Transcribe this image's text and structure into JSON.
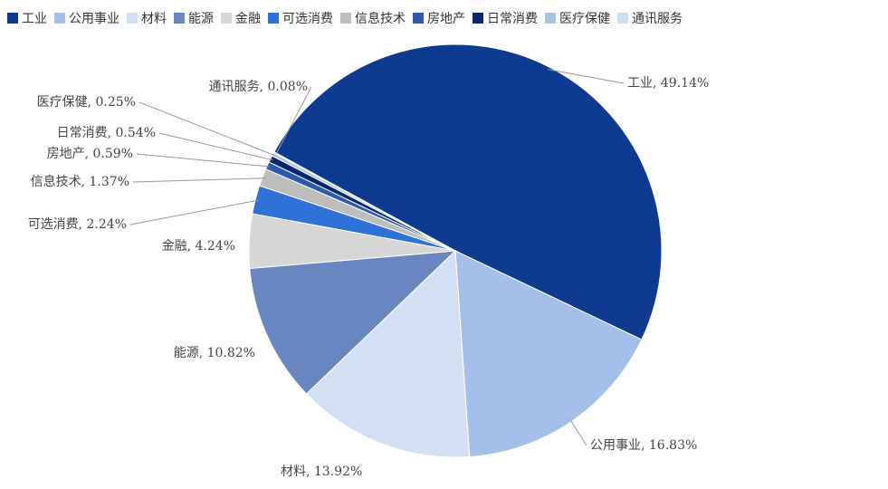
{
  "chart_data": {
    "type": "pie",
    "categories": [
      "工业",
      "公用事业",
      "材料",
      "能源",
      "金融",
      "可选消费",
      "信息技术",
      "房地产",
      "日常消费",
      "医疗保健",
      "通讯服务"
    ],
    "values": [
      49.14,
      16.83,
      13.92,
      10.82,
      4.24,
      2.24,
      1.37,
      0.59,
      0.54,
      0.25,
      0.08
    ],
    "value_labels": [
      "工业, 49.14%",
      "公用事业, 16.83%",
      "材料, 13.92%",
      "能源, 10.82%",
      "金融, 4.24%",
      "可选消费, 2.24%",
      "信息技术, 1.37%",
      "房地产, 0.59%",
      "日常消费, 0.54%",
      "医疗保健, 0.25%",
      "通讯服务, 0.08%"
    ],
    "colors": [
      "#0e3b90",
      "#a4bfe9",
      "#d3e0f4",
      "#6a86c0",
      "#d6d6d6",
      "#2e72d8",
      "#bdbdbd",
      "#2b5aaa",
      "#08296f",
      "#a9c2ea",
      "#cddcf2"
    ],
    "legend": "top"
  }
}
